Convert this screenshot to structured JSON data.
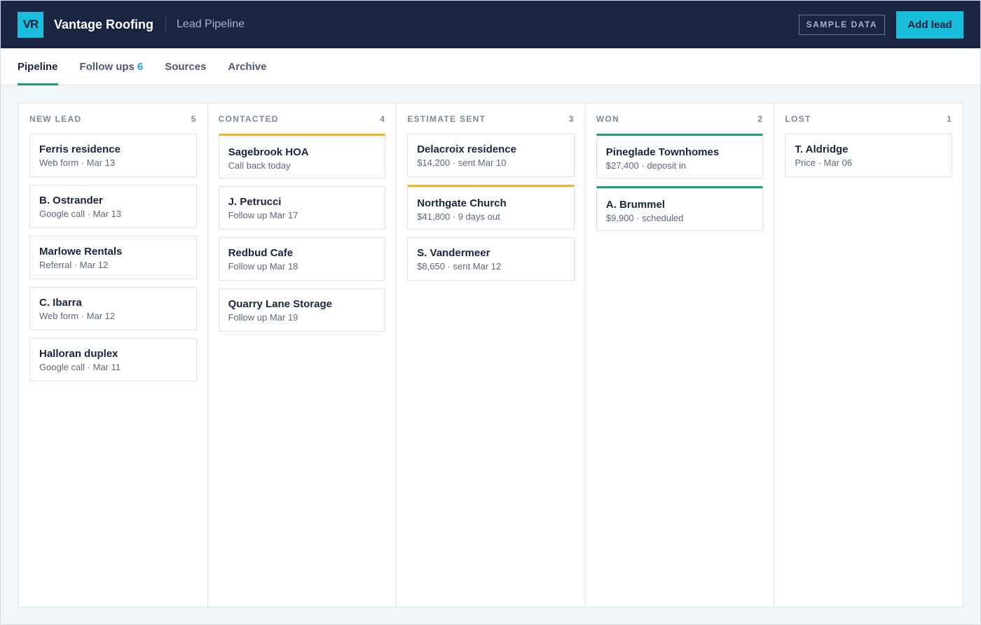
{
  "header": {
    "logo_text": "VR",
    "brand": "Vantage Roofing",
    "subtitle": "Lead Pipeline",
    "sample_badge": "SAMPLE DATA",
    "add_button": "Add lead",
    "colors": {
      "bar": "#1b2541",
      "accent": "#18bedc"
    }
  },
  "tabs": [
    {
      "label": "Pipeline",
      "active": true
    },
    {
      "label": "Follow ups",
      "count": "6"
    },
    {
      "label": "Sources"
    },
    {
      "label": "Archive"
    }
  ],
  "columns": [
    {
      "title": "NEW LEAD",
      "count": "5",
      "cards": [
        {
          "title": "Ferris residence",
          "meta": "Web form · Mar 13"
        },
        {
          "title": "B. Ostrander",
          "meta": "Google call · Mar 13"
        },
        {
          "title": "Marlowe Rentals",
          "meta": "Referral · Mar 12"
        },
        {
          "title": "C. Ibarra",
          "meta": "Web form · Mar 12"
        },
        {
          "title": "Halloran duplex",
          "meta": "Google call · Mar 11"
        }
      ]
    },
    {
      "title": "CONTACTED",
      "count": "4",
      "cards": [
        {
          "title": "Sagebrook HOA",
          "meta": "Call back today",
          "flag": "amber"
        },
        {
          "title": "J. Petrucci",
          "meta": "Follow up Mar 17"
        },
        {
          "title": "Redbud Cafe",
          "meta": "Follow up Mar 18"
        },
        {
          "title": "Quarry Lane Storage",
          "meta": "Follow up Mar 19"
        }
      ]
    },
    {
      "title": "ESTIMATE SENT",
      "count": "3",
      "cards": [
        {
          "title": "Delacroix residence",
          "meta": "$14,200 · sent Mar 10"
        },
        {
          "title": "Northgate Church",
          "meta": "$41,800 · 9 days out",
          "flag": "amber"
        },
        {
          "title": "S. Vandermeer",
          "meta": "$8,650 · sent Mar 12"
        }
      ]
    },
    {
      "title": "WON",
      "count": "2",
      "cards": [
        {
          "title": "Pineglade Townhomes",
          "meta": "$27,400 · deposit in",
          "flag": "green"
        },
        {
          "title": "A. Brummel",
          "meta": "$9,900 · scheduled",
          "flag": "green"
        }
      ]
    },
    {
      "title": "LOST",
      "count": "1",
      "cards": [
        {
          "title": "T. Aldridge",
          "meta": "Price · Mar 06"
        }
      ]
    }
  ],
  "flag_colors": {
    "amber": "#f0b323",
    "green": "#1b9e6f"
  }
}
